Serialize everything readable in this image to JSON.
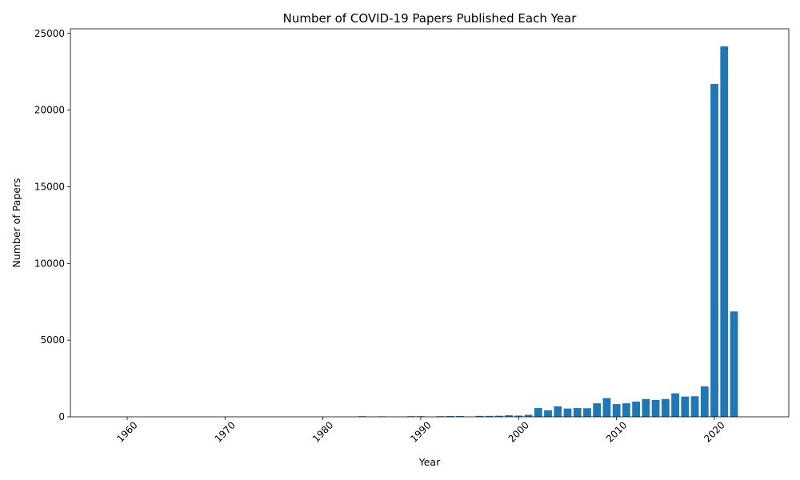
{
  "chart_data": {
    "type": "bar",
    "title": "Number of COVID-19 Papers Published Each Year",
    "xlabel": "Year",
    "ylabel": "Number of Papers",
    "bar_color": "#1f77b4",
    "xlim": [
      1954.2,
      2027.6
    ],
    "ylim": [
      0,
      25300
    ],
    "xticks": [
      "1960",
      "1970",
      "1980",
      "1990",
      "2000",
      "2010",
      "2020"
    ],
    "yticks": [
      "0",
      "5000",
      "10000",
      "15000",
      "20000",
      "25000"
    ],
    "x_tick_rotation_deg": 45,
    "grid": false,
    "legend": "none",
    "x": [
      1984,
      1986,
      1989,
      1990,
      1992,
      1993,
      1994,
      1996,
      1997,
      1998,
      1999,
      2000,
      2001,
      2002,
      2003,
      2004,
      2005,
      2006,
      2007,
      2008,
      2009,
      2010,
      2011,
      2012,
      2013,
      2014,
      2015,
      2016,
      2017,
      2018,
      2019,
      2020,
      2021,
      2022
    ],
    "values": [
      40,
      30,
      40,
      40,
      40,
      50,
      50,
      60,
      60,
      70,
      100,
      80,
      130,
      570,
      430,
      680,
      540,
      570,
      560,
      880,
      1220,
      830,
      880,
      990,
      1160,
      1100,
      1160,
      1530,
      1320,
      1340,
      1980,
      21700,
      24150,
      6870
    ]
  }
}
